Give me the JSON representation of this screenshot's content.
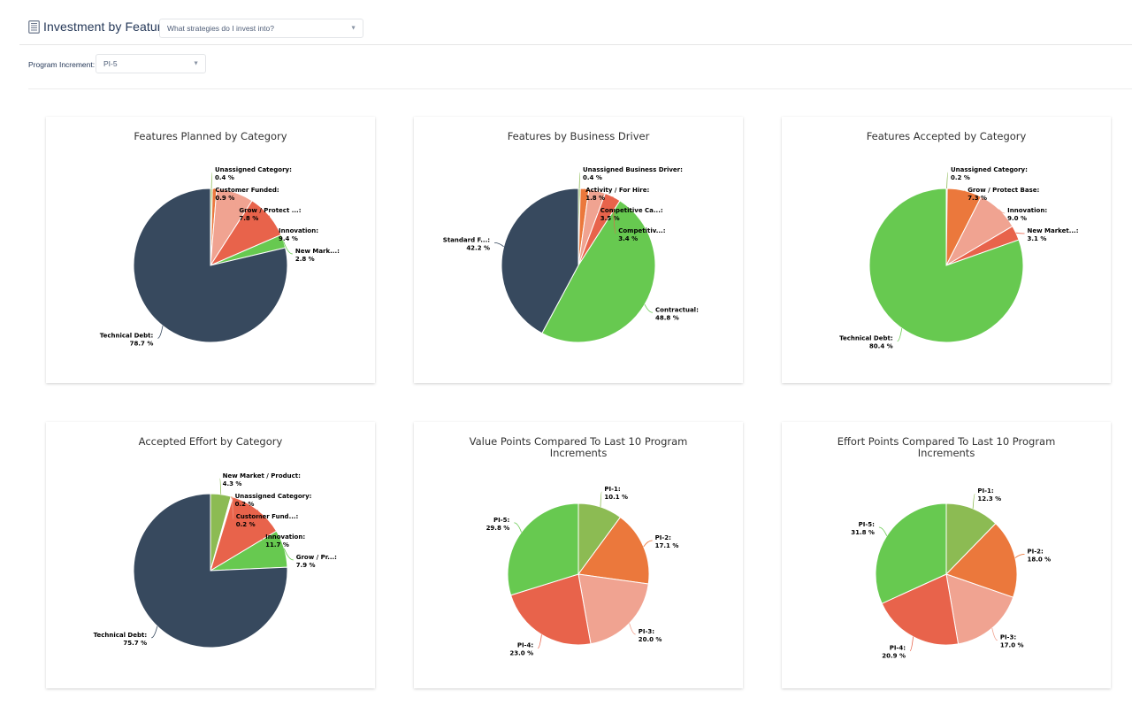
{
  "header": {
    "title": "Investment by Feature",
    "title_icon": "document-icon",
    "strategy_select": {
      "value": "What strategies do I invest into?"
    }
  },
  "filters": {
    "program_increment_label": "Program Increment:",
    "program_increment_value": "PI-5"
  },
  "palette": {
    "olive": "#8cbb53",
    "orange": "#eb783c",
    "salmon": "#f0a391",
    "red": "#e8634b",
    "green": "#67c950",
    "navy": "#37495e"
  },
  "chart_data": [
    {
      "type": "pie",
      "title": "Features Planned by Category",
      "slices": [
        {
          "label": "Unassigned Category:",
          "value": 0.4,
          "color": "#8cbb53"
        },
        {
          "label": "Customer Funded:",
          "value": 0.9,
          "color": "#eb783c"
        },
        {
          "label": "Grow / Protect ...:",
          "value": 7.8,
          "color": "#f0a391"
        },
        {
          "label": "Innovation:",
          "value": 9.4,
          "color": "#e8634b"
        },
        {
          "label": "New Mark...:",
          "value": 2.8,
          "color": "#67c950"
        },
        {
          "label": "Technical Debt:",
          "value": 78.7,
          "color": "#37495e"
        }
      ]
    },
    {
      "type": "pie",
      "title": "Features by Business Driver",
      "slices": [
        {
          "label": "Unassigned Business Driver:",
          "value": 0.4,
          "color": "#8cbb53"
        },
        {
          "label": "Activity / For Hire:",
          "value": 1.8,
          "color": "#eb783c"
        },
        {
          "label": "Competitive Ca...:",
          "value": 3.5,
          "color": "#f0a391"
        },
        {
          "label": "Competitiv...:",
          "value": 3.4,
          "color": "#e8634b"
        },
        {
          "label": "Contractual:",
          "value": 48.8,
          "color": "#67c950"
        },
        {
          "label": "Standard F...:",
          "value": 42.2,
          "color": "#37495e"
        }
      ]
    },
    {
      "type": "pie",
      "title": "Features Accepted by Category",
      "slices": [
        {
          "label": "Unassigned Category:",
          "value": 0.2,
          "color": "#8cbb53"
        },
        {
          "label": "Grow / Protect Base:",
          "value": 7.3,
          "color": "#eb783c"
        },
        {
          "label": "Innovation:",
          "value": 9.0,
          "color": "#f0a391"
        },
        {
          "label": "New Market...:",
          "value": 3.1,
          "color": "#e8634b"
        },
        {
          "label": "Technical Debt:",
          "value": 80.4,
          "color": "#67c950"
        }
      ]
    },
    {
      "type": "pie",
      "title": "Accepted Effort by Category",
      "slices": [
        {
          "label": "New Market / Product:",
          "value": 4.3,
          "color": "#8cbb53"
        },
        {
          "label": "Unassigned Category:",
          "value": 0.2,
          "color": "#eb783c"
        },
        {
          "label": "Customer Fund...:",
          "value": 0.2,
          "color": "#f0a391"
        },
        {
          "label": "Innovation:",
          "value": 11.7,
          "color": "#e8634b"
        },
        {
          "label": "Grow / Pr...:",
          "value": 7.9,
          "color": "#67c950"
        },
        {
          "label": "Technical Debt:",
          "value": 75.7,
          "color": "#37495e"
        }
      ]
    },
    {
      "type": "pie",
      "title": "Value Points Compared To Last 10 Program Increments",
      "slices": [
        {
          "label": "PI-1:",
          "value": 10.1,
          "color": "#8cbb53"
        },
        {
          "label": "PI-2:",
          "value": 17.1,
          "color": "#eb783c"
        },
        {
          "label": "PI-3:",
          "value": 20.0,
          "color": "#f0a391"
        },
        {
          "label": "PI-4:",
          "value": 23.0,
          "color": "#e8634b"
        },
        {
          "label": "PI-5:",
          "value": 29.8,
          "color": "#67c950"
        }
      ]
    },
    {
      "type": "pie",
      "title": "Effort Points Compared To Last 10 Program Increments",
      "slices": [
        {
          "label": "PI-1:",
          "value": 12.3,
          "color": "#8cbb53"
        },
        {
          "label": "PI-2:",
          "value": 18.0,
          "color": "#eb783c"
        },
        {
          "label": "PI-3:",
          "value": 17.0,
          "color": "#f0a391"
        },
        {
          "label": "PI-4:",
          "value": 20.9,
          "color": "#e8634b"
        },
        {
          "label": "PI-5:",
          "value": 31.8,
          "color": "#67c950"
        }
      ]
    }
  ]
}
